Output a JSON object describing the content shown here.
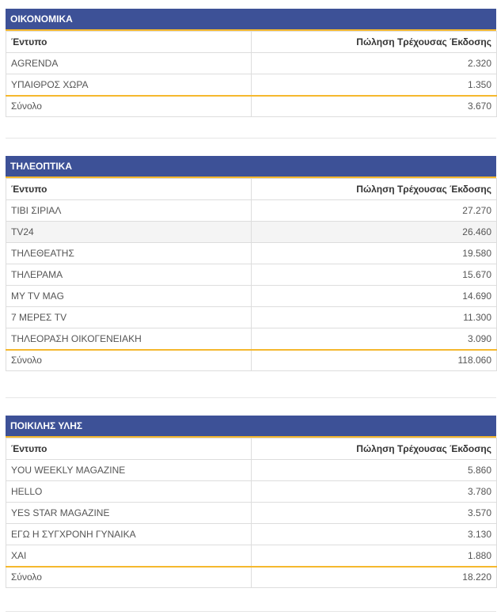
{
  "columns": {
    "name": "Έντυπο",
    "sales": "Πώληση Τρέχουσας Έκδοσης"
  },
  "total_label": "Σύνολο",
  "sections": [
    {
      "title": "ΟΙΚΟΝΟΜΙΚΑ",
      "rows": [
        {
          "name": "AGRENDA",
          "value": "2.320"
        },
        {
          "name": "ΥΠΑΙΘΡΟΣ ΧΩΡΑ",
          "value": "1.350"
        }
      ],
      "total": "3.670"
    },
    {
      "title": "ΤΗΛΕΟΠΤΙΚΑ",
      "rows": [
        {
          "name": "ΤΙΒΙ ΣΙΡΙΑΛ",
          "value": "27.270"
        },
        {
          "name": "TV24",
          "value": "26.460"
        },
        {
          "name": "ΤΗΛΕΘΕΑΤΗΣ",
          "value": "19.580"
        },
        {
          "name": "ΤΗΛΕΡΑΜΑ",
          "value": "15.670"
        },
        {
          "name": "MY TV MAG",
          "value": "14.690"
        },
        {
          "name": "7 ΜΕΡΕΣ TV",
          "value": "11.300"
        },
        {
          "name": "ΤΗΛΕΟΡΑΣΗ ΟΙΚΟΓΕΝΕΙΑΚΗ",
          "value": "3.090"
        }
      ],
      "total": "118.060"
    },
    {
      "title": "ΠΟΙΚΙΛΗΣ ΥΛΗΣ",
      "rows": [
        {
          "name": "YOU WEEKLY MAGAZINE",
          "value": "5.860"
        },
        {
          "name": "HELLO",
          "value": "3.780"
        },
        {
          "name": "YES STAR MAGAZINE",
          "value": "3.570"
        },
        {
          "name": "ΕΓΩ Η ΣΥΓΧΡΟΝΗ ΓΥΝΑΙΚΑ",
          "value": "3.130"
        },
        {
          "name": "ΧΑΙ",
          "value": "1.880"
        }
      ],
      "total": "18.220"
    }
  ]
}
